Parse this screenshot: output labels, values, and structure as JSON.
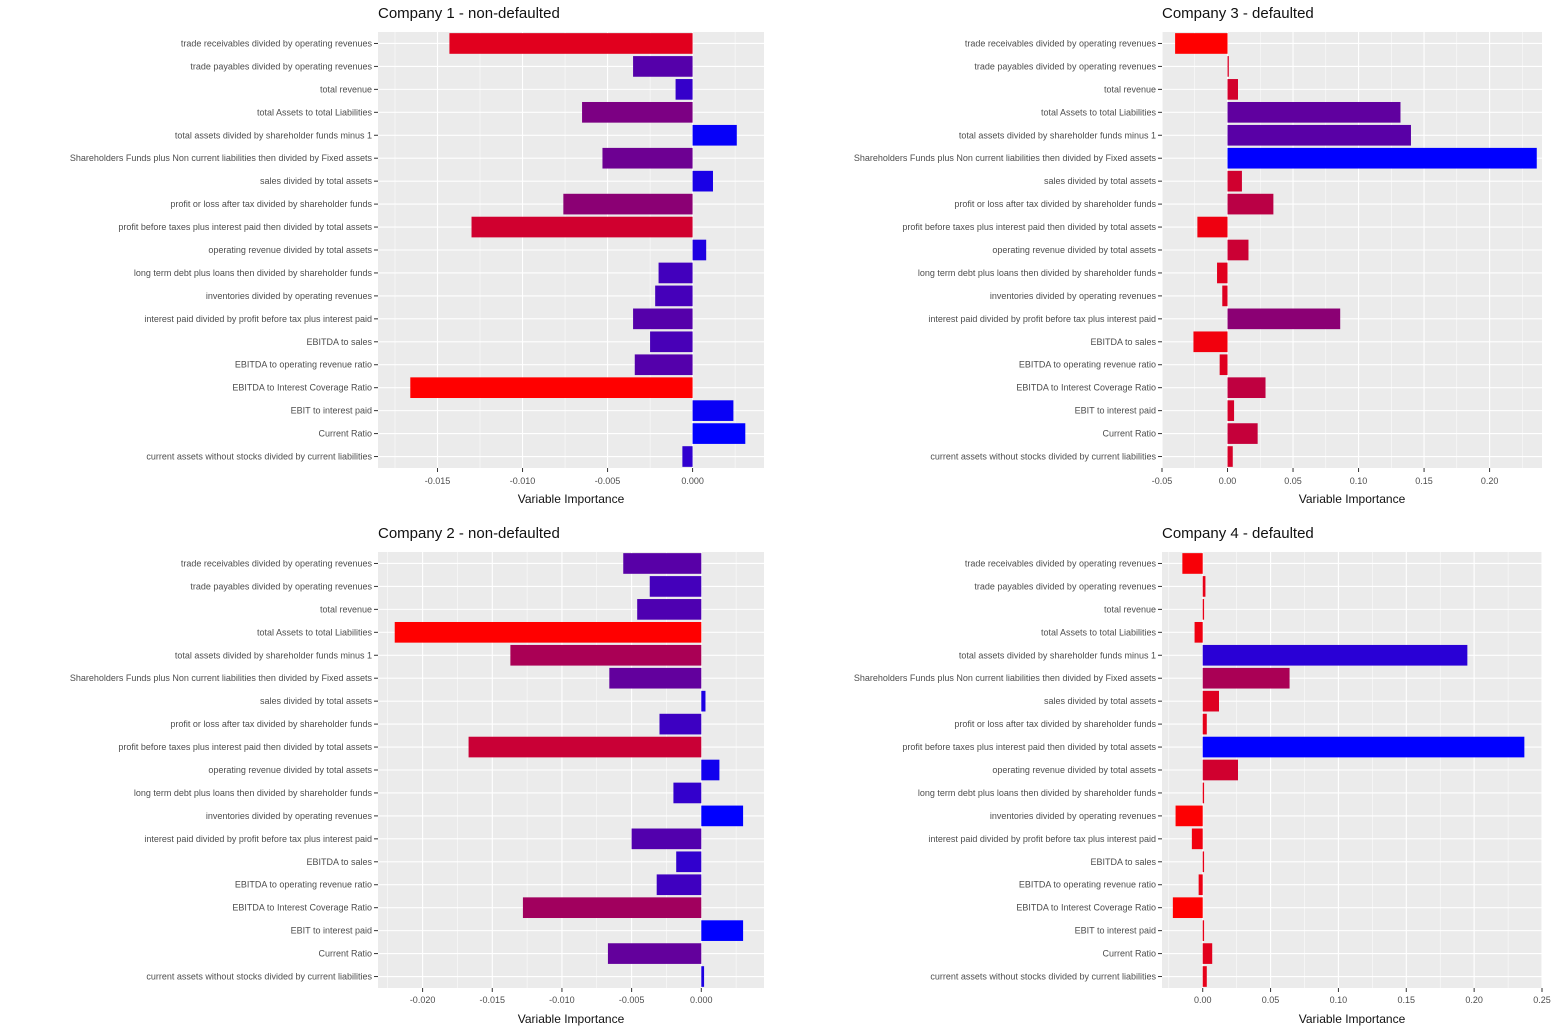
{
  "colors": {
    "panel_bg": "#ebebeb",
    "grid": "#ffffff",
    "low": "#ff0000",
    "high": "#0000ff"
  },
  "variables": [
    "trade receivables divided by operating revenues",
    "trade payables divided by operating revenues",
    "total revenue",
    "total Assets to total Liabilities",
    "total assets divided by shareholder funds minus 1",
    "Shareholders Funds plus Non current liabilities then divided by Fixed assets",
    "sales divided by total assets",
    "profit or loss after tax divided by shareholder funds",
    "profit before taxes plus interest paid then divided by total assets",
    "operating revenue divided by total assets",
    "long term debt plus loans then divided by shareholder funds",
    "inventories divided by operating revenues",
    "interest paid divided by profit before tax plus interest paid",
    "EBITDA to sales",
    "EBITDA to operating revenue ratio",
    "EBITDA to Interest Coverage Ratio",
    "EBIT to interest paid",
    "Current Ratio",
    "current assets without stocks divided by current liabilities"
  ],
  "chart_data": [
    {
      "type": "bar",
      "orientation": "horizontal",
      "title": "Company 1 - non-defaulted",
      "xlabel": "Variable Importance",
      "xlim": [
        -0.0185,
        0.0042
      ],
      "xticks": [
        -0.015,
        -0.01,
        -0.005,
        0
      ],
      "xtick_labels": [
        "-0.015",
        "-0.010",
        "-0.005",
        "0.000"
      ],
      "values": [
        -0.0143,
        -0.0035,
        -0.001,
        -0.0065,
        0.0026,
        -0.0053,
        0.0012,
        -0.0076,
        -0.013,
        0.0008,
        -0.002,
        -0.0022,
        -0.0035,
        -0.0025,
        -0.0034,
        -0.0166,
        0.0024,
        0.0031,
        -0.0006
      ]
    },
    {
      "type": "bar",
      "orientation": "horizontal",
      "title": "Company 3 - defaulted",
      "xlabel": "Variable Importance",
      "xlim": [
        -0.05,
        0.24
      ],
      "xticks": [
        -0.05,
        0,
        0.05,
        0.1,
        0.15,
        0.2
      ],
      "xtick_labels": [
        "-0.05",
        "0.00",
        "0.05",
        "0.10",
        "0.15",
        "0.20"
      ],
      "values": [
        -0.04,
        0.001,
        0.008,
        0.132,
        0.14,
        0.236,
        0.011,
        0.035,
        -0.023,
        0.016,
        -0.008,
        -0.004,
        0.086,
        -0.026,
        -0.006,
        0.029,
        0.005,
        0.023,
        0.004
      ]
    },
    {
      "type": "bar",
      "orientation": "horizontal",
      "title": "Company 2 - non-defaulted",
      "xlabel": "Variable Importance",
      "xlim": [
        -0.0232,
        0.0045
      ],
      "xticks": [
        -0.02,
        -0.015,
        -0.01,
        -0.005,
        0
      ],
      "xtick_labels": [
        "-0.020",
        "-0.015",
        "-0.010",
        "-0.005",
        "0.000"
      ],
      "values": [
        -0.0056,
        -0.0037,
        -0.0046,
        -0.022,
        -0.0137,
        -0.0066,
        0.0003,
        -0.003,
        -0.0167,
        0.0013,
        -0.002,
        0.003,
        -0.005,
        -0.0018,
        -0.0032,
        -0.0128,
        0.003,
        -0.0067,
        0.0002
      ]
    },
    {
      "type": "bar",
      "orientation": "horizontal",
      "title": "Company 4 - defaulted",
      "xlabel": "Variable Importance",
      "xlim": [
        -0.03,
        0.25
      ],
      "xticks": [
        0,
        0.05,
        0.1,
        0.15,
        0.2,
        0.25
      ],
      "xtick_labels": [
        "0.00",
        "0.05",
        "0.10",
        "0.15",
        "0.20",
        "0.25"
      ],
      "values": [
        -0.015,
        0.002,
        0.001,
        -0.006,
        0.195,
        0.064,
        0.012,
        0.003,
        0.237,
        0.026,
        0.001,
        -0.02,
        -0.008,
        0.001,
        -0.003,
        -0.022,
        0.001,
        0.007,
        0.003
      ]
    }
  ]
}
